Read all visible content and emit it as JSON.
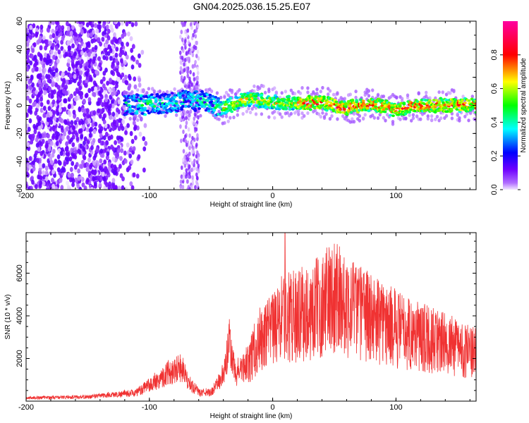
{
  "title": "GN04.2025.036.15.25.E07",
  "colors": {
    "snr_line": "#f03232",
    "axis": "#000000",
    "background": "#ffffff"
  },
  "chart_data": [
    {
      "type": "heatmap",
      "panel": "spectrogram",
      "xlabel": "Height of straight line (km)",
      "ylabel": "Frequency (Hz)",
      "xlim": [
        -200,
        165
      ],
      "ylim": [
        -60,
        60
      ],
      "xticks": [
        -200,
        -100,
        0,
        100
      ],
      "yticks": [
        -60,
        -40,
        -20,
        0,
        20,
        40,
        60
      ],
      "colorbar": {
        "label": "Normalized spectral amplitude",
        "range": [
          0,
          1
        ],
        "ticks": [
          "0.0",
          "0.2",
          "0.4",
          "0.6",
          "0.8"
        ],
        "tick_values": [
          0,
          0.2,
          0.4,
          0.6,
          0.8
        ],
        "colormap": "rainbow"
      },
      "features": {
        "noise_region_x": [
          -200,
          -110
        ],
        "noise_burst_x": [
          -75,
          -60
        ],
        "signal_band_start_x": -120,
        "signal_center_track": [
          [
            -120,
            0
          ],
          [
            -80,
            2
          ],
          [
            -60,
            4
          ],
          [
            -40,
            -2
          ],
          [
            -20,
            5
          ],
          [
            0,
            2
          ],
          [
            20,
            2
          ],
          [
            40,
            2
          ],
          [
            60,
            -2
          ],
          [
            80,
            1
          ],
          [
            100,
            -3
          ],
          [
            120,
            0
          ],
          [
            140,
            0
          ],
          [
            165,
            0
          ]
        ]
      }
    },
    {
      "type": "line",
      "panel": "snr",
      "xlabel": "Height of straight line (km)",
      "ylabel": "SNR (10 * v/v)",
      "xlim": [
        -200,
        165
      ],
      "ylim": [
        0,
        7900
      ],
      "xticks": [
        -200,
        -100,
        0,
        100
      ],
      "yticks": [
        2000,
        4000,
        6000
      ],
      "envelope": [
        [
          -200,
          150
        ],
        [
          -150,
          200
        ],
        [
          -110,
          400
        ],
        [
          -95,
          900
        ],
        [
          -85,
          1300
        ],
        [
          -75,
          1600
        ],
        [
          -70,
          1000
        ],
        [
          -60,
          400
        ],
        [
          -50,
          400
        ],
        [
          -40,
          1200
        ],
        [
          -35,
          2600
        ],
        [
          -30,
          1200
        ],
        [
          -20,
          1800
        ],
        [
          -10,
          2900
        ],
        [
          -5,
          3000
        ],
        [
          0,
          3300
        ],
        [
          10,
          4000
        ],
        [
          20,
          4000
        ],
        [
          30,
          4200
        ],
        [
          40,
          4500
        ],
        [
          50,
          5000
        ],
        [
          60,
          4500
        ],
        [
          70,
          4200
        ],
        [
          80,
          3900
        ],
        [
          100,
          3400
        ],
        [
          120,
          3000
        ],
        [
          140,
          2700
        ],
        [
          165,
          2200
        ]
      ],
      "peak": [
        10,
        7900
      ]
    }
  ]
}
